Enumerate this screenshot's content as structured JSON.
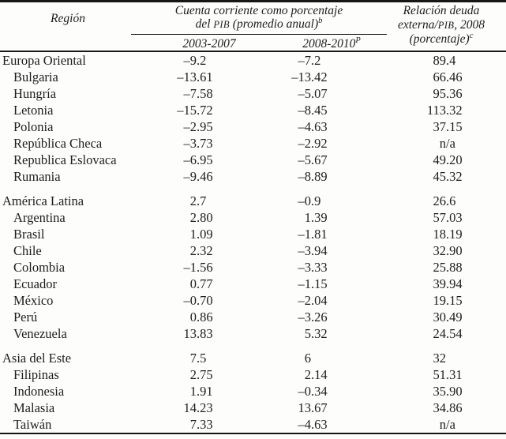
{
  "colors": {
    "background": "#fdfdfb",
    "text_color": "#1d1d1b",
    "rule_color": "#161616"
  },
  "table": {
    "header": {
      "region_label": "Región",
      "spanning": {
        "line1": "Cuenta corriente como porcentaje",
        "line2_pre": "del ",
        "line2_pib": "PIB",
        "line2_post": " (promedio anual)",
        "line2_sup": "b"
      },
      "subcolumns": {
        "col1": "2003-2007",
        "col2_text": "2008-2010",
        "col2_sup": "P"
      },
      "debt": {
        "line1": "Relación deuda",
        "line2_pre": "externa/",
        "line2_pib": "PIB",
        "line2_post": ", 2008",
        "line3": "(porcentaje)",
        "line3_sup": "c"
      }
    },
    "rows": [
      {
        "name": "Europa Oriental",
        "indent": false,
        "gap_before": false,
        "values": [
          "–9.2",
          "–7.2",
          "89.4"
        ]
      },
      {
        "name": "Bulgaria",
        "indent": true,
        "gap_before": false,
        "values": [
          "–13.61",
          "–13.42",
          "66.46"
        ]
      },
      {
        "name": "Hungría",
        "indent": true,
        "gap_before": false,
        "values": [
          "–7.58",
          "–5.07",
          "95.36"
        ]
      },
      {
        "name": "Letonia",
        "indent": true,
        "gap_before": false,
        "values": [
          "–15.72",
          "–8.45",
          "113.32"
        ]
      },
      {
        "name": "Polonia",
        "indent": true,
        "gap_before": false,
        "values": [
          "–2.95",
          "–4.63",
          "37.15"
        ]
      },
      {
        "name": "República Checa",
        "indent": true,
        "gap_before": false,
        "values": [
          "–3.73",
          "–2.92",
          "n/a"
        ]
      },
      {
        "name": "Republica Eslovaca",
        "indent": true,
        "gap_before": false,
        "values": [
          "–6.95",
          "–5.67",
          "49.20"
        ]
      },
      {
        "name": "Rumania",
        "indent": true,
        "gap_before": false,
        "values": [
          "–9.46",
          "–8.89",
          "45.32"
        ]
      },
      {
        "name": "América Latina",
        "indent": false,
        "gap_before": true,
        "values": [
          "2.7",
          "–0.9",
          "26.6"
        ]
      },
      {
        "name": "Argentina",
        "indent": true,
        "gap_before": false,
        "values": [
          "2.80",
          "1.39",
          "57.03"
        ]
      },
      {
        "name": "Brasil",
        "indent": true,
        "gap_before": false,
        "values": [
          "1.09",
          "–1.81",
          "18.19"
        ]
      },
      {
        "name": "Chile",
        "indent": true,
        "gap_before": false,
        "values": [
          "2.32",
          "–3.94",
          "32.90"
        ]
      },
      {
        "name": "Colombia",
        "indent": true,
        "gap_before": false,
        "values": [
          "–1.56",
          "–3.33",
          "25.88"
        ]
      },
      {
        "name": "Ecuador",
        "indent": true,
        "gap_before": false,
        "values": [
          "0.77",
          "–1.15",
          "39.94"
        ]
      },
      {
        "name": "México",
        "indent": true,
        "gap_before": false,
        "values": [
          "–0.70",
          "–2.04",
          "19.15"
        ]
      },
      {
        "name": "Perú",
        "indent": true,
        "gap_before": false,
        "values": [
          "0.86",
          "–3.26",
          "30.49"
        ]
      },
      {
        "name": "Venezuela",
        "indent": true,
        "gap_before": false,
        "values": [
          "13.83",
          "5.32",
          "24.54"
        ]
      },
      {
        "name": "Asia del Este",
        "indent": false,
        "gap_before": true,
        "values": [
          "7.5",
          "6",
          "32"
        ]
      },
      {
        "name": "Filipinas",
        "indent": true,
        "gap_before": false,
        "values": [
          "2.75",
          "2.14",
          "51.31"
        ]
      },
      {
        "name": "Indonesia",
        "indent": true,
        "gap_before": false,
        "values": [
          "1.91",
          "–0.34",
          "35.90"
        ]
      },
      {
        "name": "Malasia",
        "indent": true,
        "gap_before": false,
        "values": [
          "14.23",
          "13.67",
          "34.86"
        ]
      },
      {
        "name": "Taiwán",
        "indent": true,
        "gap_before": false,
        "values": [
          "7.33",
          "–4.63",
          "n/a"
        ]
      }
    ]
  }
}
